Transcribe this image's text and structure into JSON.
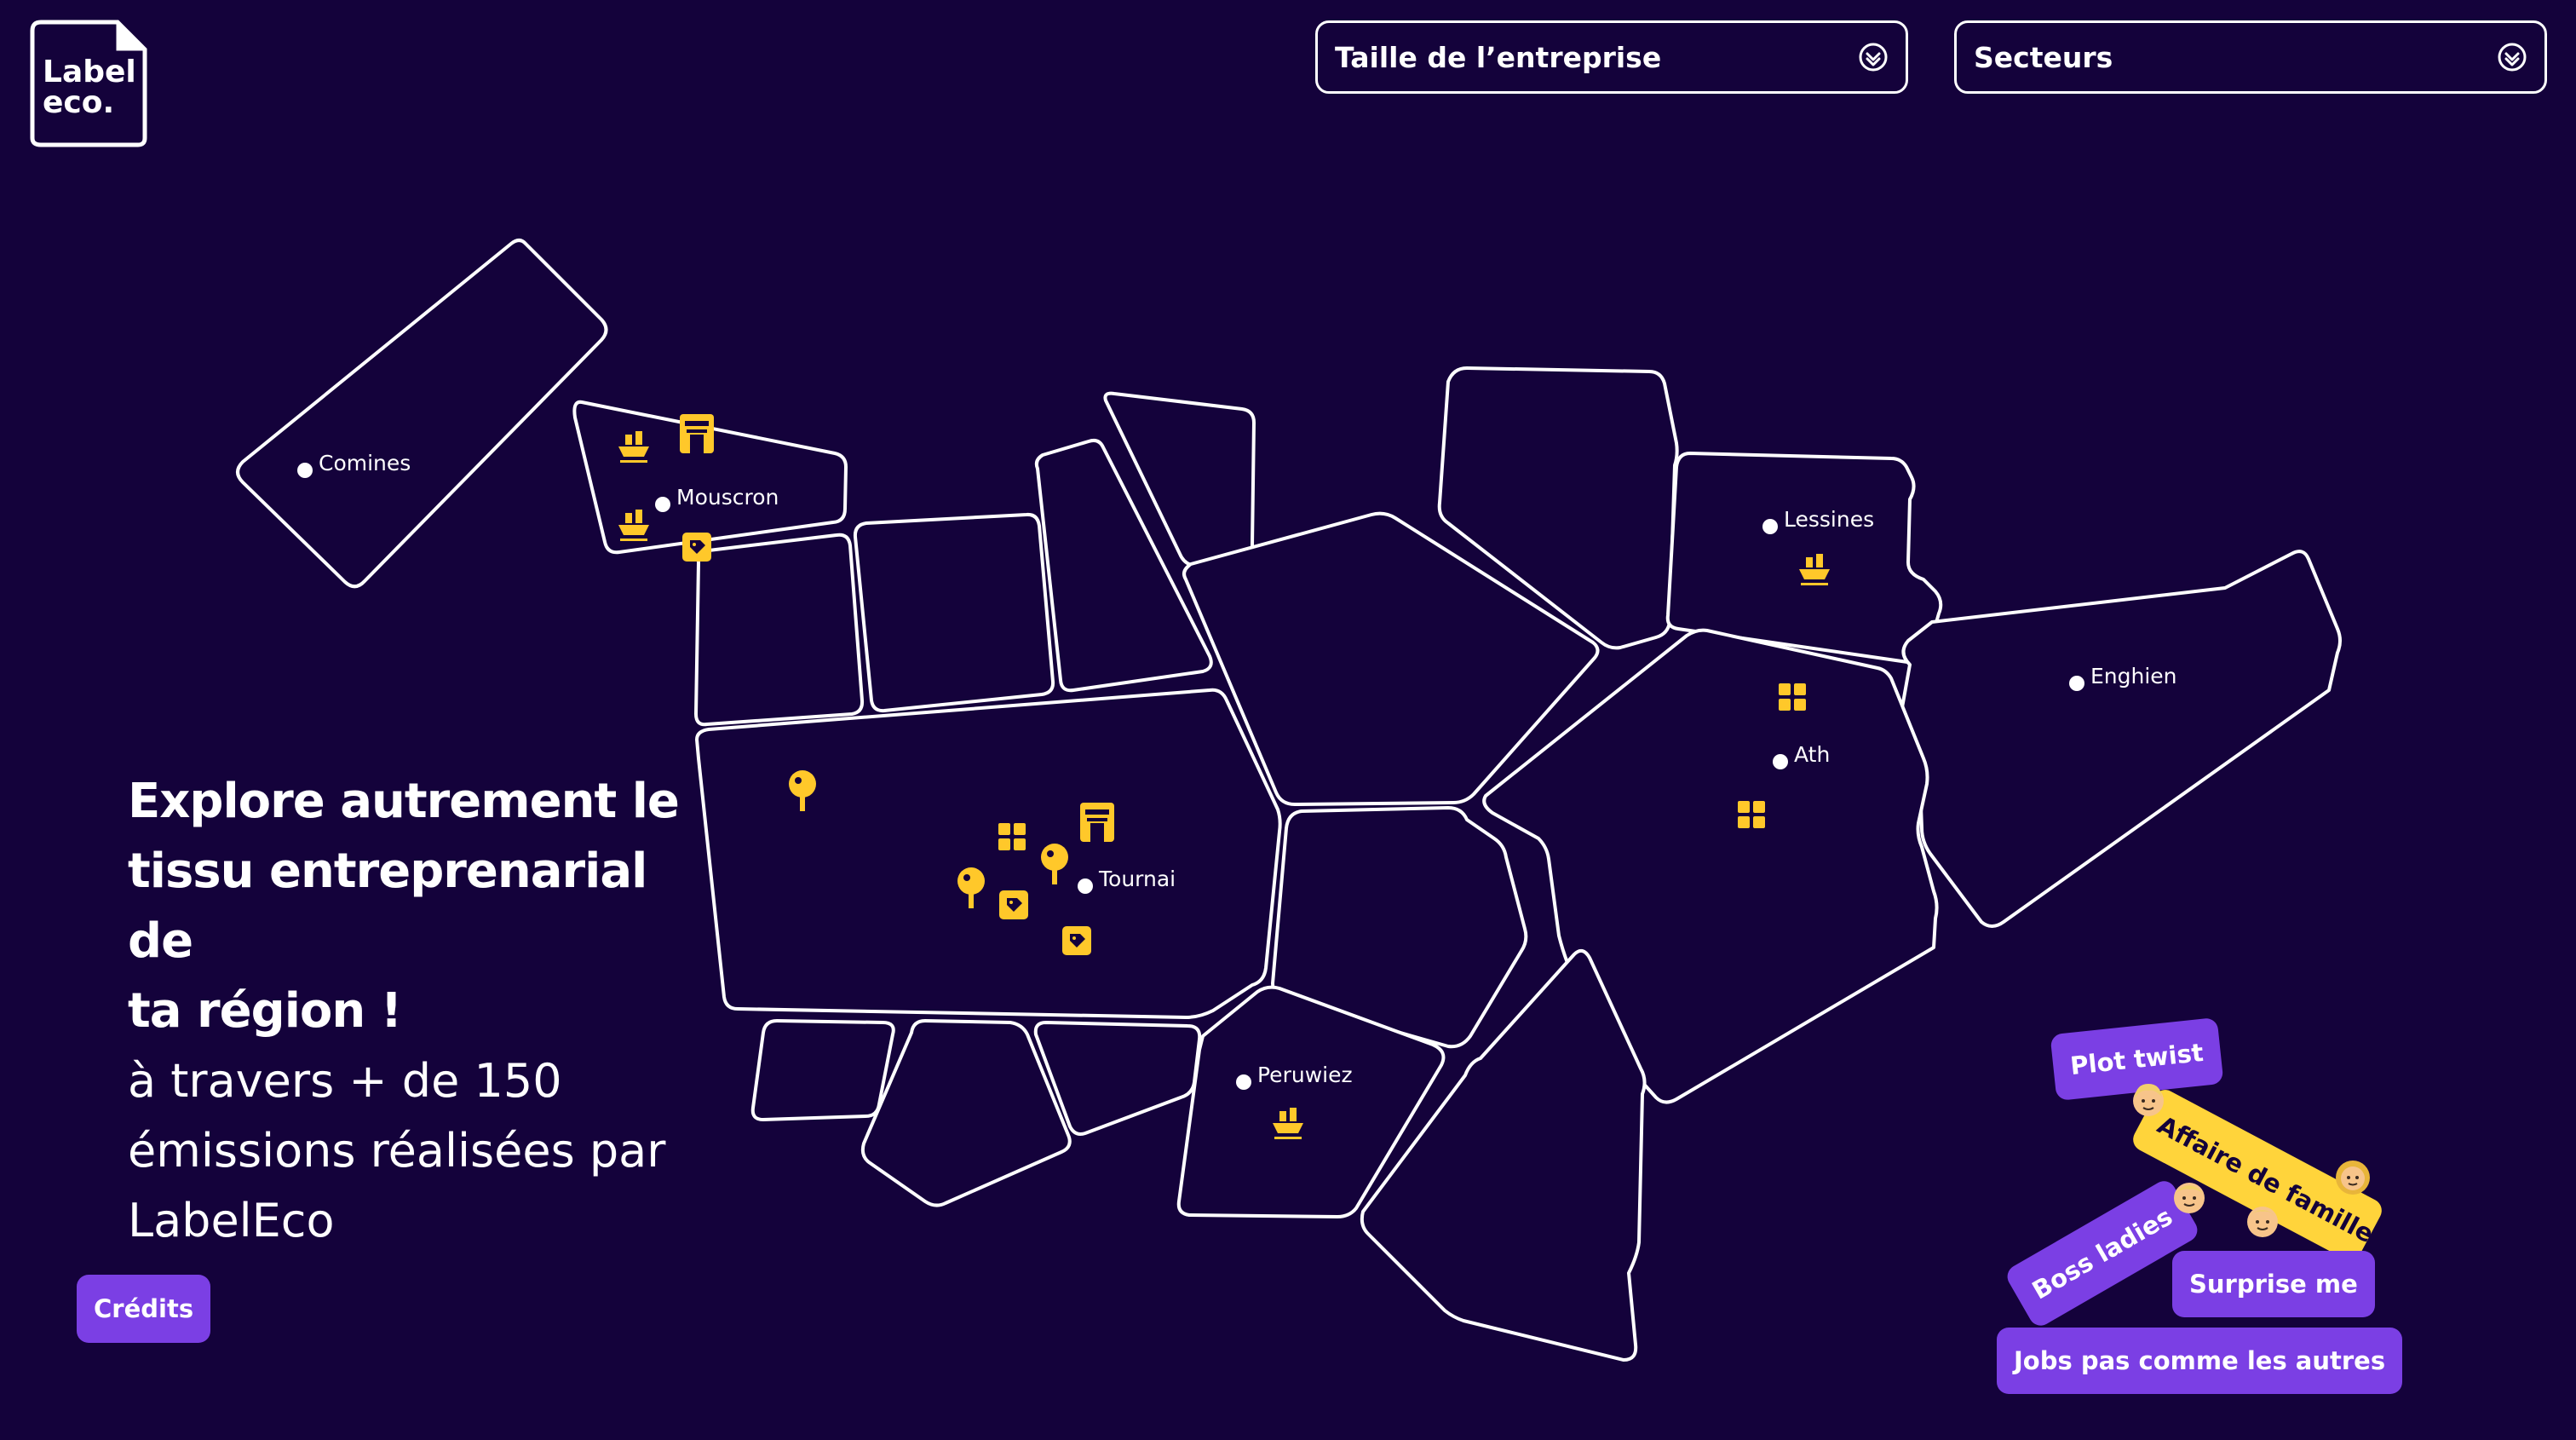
{
  "brand": {
    "logo_text_line1": "Label",
    "logo_text_line2": "eco."
  },
  "filters": {
    "company_size": {
      "label": "Taille de l’entreprise",
      "icon": "chevron-down-circle-icon"
    },
    "sectors": {
      "label": "Secteurs",
      "icon": "chevron-down-circle-icon"
    }
  },
  "map": {
    "cities": [
      "Comines",
      "Mouscron",
      "Lessines",
      "Enghien",
      "Ath",
      "Tournai",
      "Peruwiez"
    ],
    "marker_color": "#ffc82a",
    "marker_icons": [
      "boat-icon",
      "shop-icon",
      "pin-icon",
      "grid-icon",
      "tag-icon"
    ]
  },
  "hero": {
    "title_line1": "Explore autrement le",
    "title_line2": "tissu entreprenarial de",
    "title_line3": "ta région !",
    "sub_line1": "à travers + de 150",
    "sub_line2": "émissions réalisées par",
    "sub_line3": "LabelEco"
  },
  "credits_label": "Crédits",
  "tags": {
    "plot_twist": "Plot twist",
    "affaire_famille": "Affaire de famille",
    "boss_ladies": "Boss ladies",
    "surprise_me": "Surprise me",
    "jobs": "Jobs pas comme les autres"
  },
  "colors": {
    "background": "#14023b",
    "accent": "#7b3fe4",
    "highlight": "#ffd43b"
  }
}
